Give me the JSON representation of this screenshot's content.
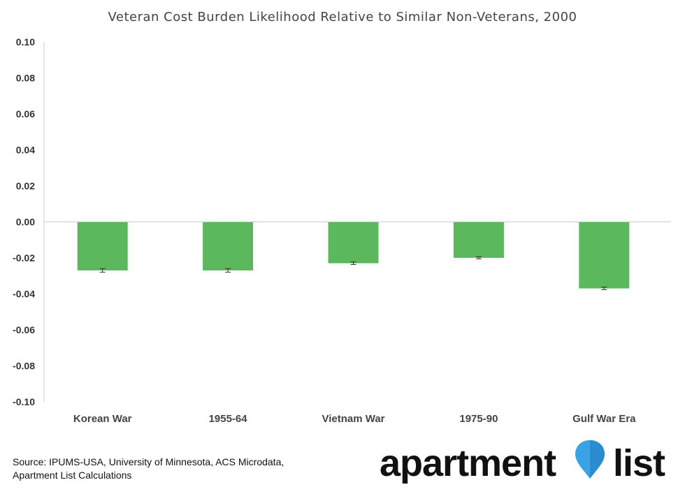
{
  "chart_data": {
    "type": "bar",
    "title": "Veteran Cost Burden Likelihood Relative to Similar Non-Veterans, 2000",
    "xlabel": "",
    "ylabel": "",
    "categories": [
      "Korean War",
      "1955-64",
      "Vietnam War",
      "1975-90",
      "Gulf War Era"
    ],
    "series": [
      {
        "values": [
          -0.027,
          -0.027,
          -0.023,
          -0.02,
          -0.037
        ],
        "error": [
          0.001,
          0.001,
          0.0007,
          0.0006,
          0.0007
        ]
      }
    ],
    "ylim": [
      -0.1,
      0.1
    ],
    "yticks": [
      "0.10",
      "0.08",
      "0.06",
      "0.04",
      "0.02",
      "0.00",
      "-0.02",
      "-0.04",
      "-0.06",
      "-0.08",
      "-0.10"
    ],
    "grid": false,
    "colors": {
      "bar": "#5cb85c",
      "error": "#333333",
      "axis": "#cccccc"
    }
  },
  "footer": {
    "source_line1": "Source: IPUMS-USA, University of Minnesota, ACS Microdata,",
    "source_line2": "Apartment List Calculations"
  },
  "logo": {
    "text_left": "apartment",
    "text_right": "list",
    "pin_color": "#3aa3e3",
    "icon": "location-pin-icon"
  }
}
